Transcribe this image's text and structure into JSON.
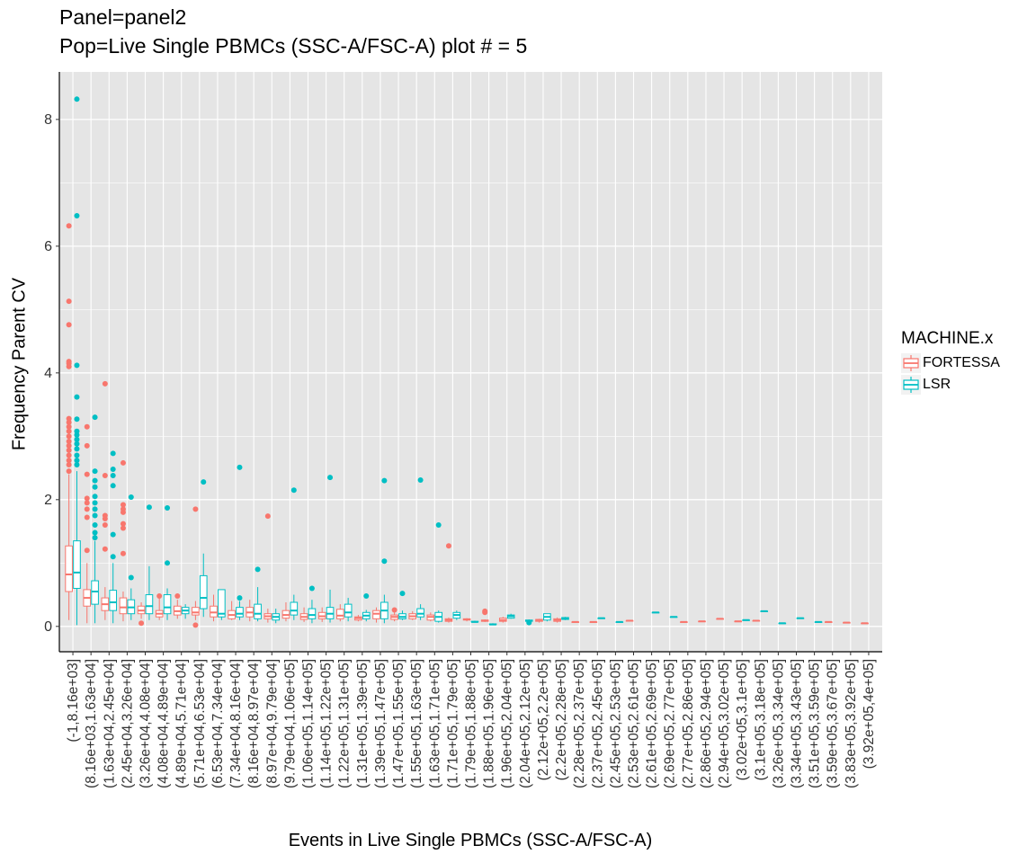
{
  "chart_data": {
    "type": "box",
    "title": "Panel=panel2",
    "subtitle": "Pop=Live Single PBMCs (SSC-A/FSC-A) plot # = 5",
    "xlabel": "Events in Live Single PBMCs (SSC-A/FSC-A)",
    "ylabel": "Frequency Parent CV",
    "ylim": [
      -0.4,
      8.75
    ],
    "yticks": [
      0,
      2,
      4,
      6,
      8
    ],
    "grid": true,
    "legend_position": "right",
    "legend": {
      "title": "MACHINE.x",
      "entries": [
        {
          "label": "FORTESSA",
          "color": "#F8766D"
        },
        {
          "label": "LSR",
          "color": "#00BFC4"
        }
      ]
    },
    "categories": [
      "(-1,8.16e+03]",
      "(8.16e+03,1.63e+04]",
      "(1.63e+04,2.45e+04]",
      "(2.45e+04,3.26e+04]",
      "(3.26e+04,4.08e+04]",
      "(4.08e+04,4.89e+04]",
      "(4.89e+04,5.71e+04]",
      "(5.71e+04,6.53e+04]",
      "(6.53e+04,7.34e+04]",
      "(7.34e+04,8.16e+04]",
      "(8.16e+04,8.97e+04]",
      "(8.97e+04,9.79e+04]",
      "(9.79e+04,1.06e+05]",
      "(1.06e+05,1.14e+05]",
      "(1.14e+05,1.22e+05]",
      "(1.22e+05,1.31e+05]",
      "(1.31e+05,1.39e+05]",
      "(1.39e+05,1.47e+05]",
      "(1.47e+05,1.55e+05]",
      "(1.55e+05,1.63e+05]",
      "(1.63e+05,1.71e+05]",
      "(1.71e+05,1.79e+05]",
      "(1.79e+05,1.88e+05]",
      "(1.88e+05,1.96e+05]",
      "(1.96e+05,2.04e+05]",
      "(2.04e+05,2.12e+05]",
      "(2.12e+05,2.2e+05]",
      "(2.2e+05,2.28e+05]",
      "(2.28e+05,2.37e+05]",
      "(2.37e+05,2.45e+05]",
      "(2.45e+05,2.53e+05]",
      "(2.53e+05,2.61e+05]",
      "(2.61e+05,2.69e+05]",
      "(2.69e+05,2.77e+05]",
      "(2.77e+05,2.86e+05]",
      "(2.86e+05,2.94e+05]",
      "(2.94e+05,3.02e+05]",
      "(3.02e+05,3.1e+05]",
      "(3.1e+05,3.18e+05]",
      "(3.26e+05,3.34e+05]",
      "(3.34e+05,3.43e+05]",
      "(3.51e+05,3.59e+05]",
      "(3.59e+05,3.67e+05]",
      "(3.83e+05,3.92e+05]",
      "(3.92e+05,4e+05]"
    ],
    "series": [
      {
        "name": "FORTESSA",
        "color": "#F8766D",
        "boxes": [
          {
            "cat": 0,
            "lo": 0.1,
            "q1": 0.55,
            "med": 0.82,
            "q3": 1.27,
            "hi": 2.4,
            "out": [
              2.45,
              2.55,
              2.62,
              2.7,
              2.78,
              2.85,
              2.92,
              3.0,
              3.08,
              3.15,
              3.22,
              3.28,
              4.1,
              4.15,
              4.18,
              4.76,
              5.13,
              6.32
            ]
          },
          {
            "cat": 1,
            "lo": 0.05,
            "q1": 0.32,
            "med": 0.45,
            "q3": 0.58,
            "hi": 1.0,
            "out": [
              1.2,
              1.72,
              1.85,
              1.95,
              2.02,
              2.4,
              2.85,
              3.15
            ]
          },
          {
            "cat": 2,
            "lo": 0.1,
            "q1": 0.25,
            "med": 0.35,
            "q3": 0.45,
            "hi": 0.62,
            "out": [
              1.22,
              1.6,
              1.7,
              1.75,
              2.38,
              3.83
            ]
          },
          {
            "cat": 3,
            "lo": 0.08,
            "q1": 0.2,
            "med": 0.3,
            "q3": 0.45,
            "hi": 0.55,
            "out": [
              1.15,
              1.55,
              1.62,
              1.8,
              1.85,
              1.92,
              2.58
            ]
          },
          {
            "cat": 4,
            "lo": 0.12,
            "q1": 0.2,
            "med": 0.25,
            "q3": 0.32,
            "hi": 0.38,
            "out": [
              0.05
            ]
          },
          {
            "cat": 5,
            "lo": 0.1,
            "q1": 0.15,
            "med": 0.2,
            "q3": 0.25,
            "hi": 0.45,
            "out": [
              0.48
            ]
          },
          {
            "cat": 6,
            "lo": 0.12,
            "q1": 0.18,
            "med": 0.24,
            "q3": 0.32,
            "hi": 0.42,
            "out": [
              0.48
            ]
          },
          {
            "cat": 7,
            "lo": 0.1,
            "q1": 0.18,
            "med": 0.22,
            "q3": 0.3,
            "hi": 0.4,
            "out": [
              0.02,
              1.85
            ]
          },
          {
            "cat": 8,
            "lo": 0.08,
            "q1": 0.15,
            "med": 0.22,
            "q3": 0.32,
            "hi": 0.5,
            "out": []
          },
          {
            "cat": 9,
            "lo": 0.1,
            "q1": 0.12,
            "med": 0.18,
            "q3": 0.25,
            "hi": 0.4,
            "out": []
          },
          {
            "cat": 10,
            "lo": 0.08,
            "q1": 0.15,
            "med": 0.22,
            "q3": 0.3,
            "hi": 0.42,
            "out": []
          },
          {
            "cat": 11,
            "lo": 0.06,
            "q1": 0.12,
            "med": 0.16,
            "q3": 0.2,
            "hi": 0.28,
            "out": [
              1.74
            ]
          },
          {
            "cat": 12,
            "lo": 0.08,
            "q1": 0.13,
            "med": 0.18,
            "q3": 0.25,
            "hi": 0.38,
            "out": []
          },
          {
            "cat": 13,
            "lo": 0.07,
            "q1": 0.11,
            "med": 0.15,
            "q3": 0.2,
            "hi": 0.3,
            "out": []
          },
          {
            "cat": 14,
            "lo": 0.07,
            "q1": 0.12,
            "med": 0.16,
            "q3": 0.22,
            "hi": 0.3,
            "out": []
          },
          {
            "cat": 15,
            "lo": 0.08,
            "q1": 0.12,
            "med": 0.17,
            "q3": 0.27,
            "hi": 0.35,
            "out": []
          },
          {
            "cat": 16,
            "lo": 0.08,
            "q1": 0.1,
            "med": 0.13,
            "q3": 0.15,
            "hi": 0.18,
            "out": []
          },
          {
            "cat": 17,
            "lo": 0.06,
            "q1": 0.12,
            "med": 0.2,
            "q3": 0.25,
            "hi": 0.3,
            "out": []
          },
          {
            "cat": 18,
            "lo": 0.08,
            "q1": 0.11,
            "med": 0.15,
            "q3": 0.18,
            "hi": 0.22,
            "out": [
              0.26
            ]
          },
          {
            "cat": 19,
            "lo": 0.1,
            "q1": 0.12,
            "med": 0.16,
            "q3": 0.2,
            "hi": 0.24,
            "out": []
          },
          {
            "cat": 20,
            "lo": 0.08,
            "q1": 0.1,
            "med": 0.15,
            "q3": 0.18,
            "hi": 0.22,
            "out": []
          },
          {
            "cat": 21,
            "lo": 0.06,
            "q1": 0.08,
            "med": 0.1,
            "q3": 0.12,
            "hi": 0.14,
            "out": [
              1.27
            ]
          },
          {
            "cat": 22,
            "lo": 0.08,
            "q1": 0.1,
            "med": 0.11,
            "q3": 0.12,
            "hi": 0.13,
            "out": []
          },
          {
            "cat": 23,
            "lo": 0.07,
            "q1": 0.08,
            "med": 0.09,
            "q3": 0.1,
            "hi": 0.11,
            "out": [
              0.22,
              0.24
            ]
          },
          {
            "cat": 24,
            "lo": 0.06,
            "q1": 0.08,
            "med": 0.1,
            "q3": 0.13,
            "hi": 0.15,
            "out": []
          },
          {
            "cat": 26,
            "lo": 0.06,
            "q1": 0.08,
            "med": 0.1,
            "q3": 0.11,
            "hi": 0.12,
            "out": []
          },
          {
            "cat": 27,
            "lo": 0.06,
            "q1": 0.08,
            "med": 0.1,
            "q3": 0.12,
            "hi": 0.14,
            "out": []
          },
          {
            "cat": 28,
            "lo": 0.07,
            "q1": 0.07,
            "med": 0.07,
            "q3": 0.07,
            "hi": 0.07,
            "out": []
          },
          {
            "cat": 29,
            "lo": 0.07,
            "q1": 0.07,
            "med": 0.07,
            "q3": 0.07,
            "hi": 0.07,
            "out": []
          },
          {
            "cat": 31,
            "lo": 0.09,
            "q1": 0.09,
            "med": 0.09,
            "q3": 0.09,
            "hi": 0.09,
            "out": []
          },
          {
            "cat": 34,
            "lo": 0.07,
            "q1": 0.07,
            "med": 0.07,
            "q3": 0.07,
            "hi": 0.07,
            "out": []
          },
          {
            "cat": 35,
            "lo": 0.08,
            "q1": 0.08,
            "med": 0.08,
            "q3": 0.08,
            "hi": 0.08,
            "out": []
          },
          {
            "cat": 36,
            "lo": 0.12,
            "q1": 0.12,
            "med": 0.12,
            "q3": 0.12,
            "hi": 0.12,
            "out": []
          },
          {
            "cat": 37,
            "lo": 0.08,
            "q1": 0.08,
            "med": 0.08,
            "q3": 0.08,
            "hi": 0.08,
            "out": []
          },
          {
            "cat": 38,
            "lo": 0.09,
            "q1": 0.09,
            "med": 0.09,
            "q3": 0.09,
            "hi": 0.09,
            "out": []
          },
          {
            "cat": 42,
            "lo": 0.07,
            "q1": 0.07,
            "med": 0.07,
            "q3": 0.07,
            "hi": 0.07,
            "out": []
          },
          {
            "cat": 43,
            "lo": 0.06,
            "q1": 0.06,
            "med": 0.06,
            "q3": 0.06,
            "hi": 0.06,
            "out": []
          },
          {
            "cat": 44,
            "lo": 0.05,
            "q1": 0.05,
            "med": 0.05,
            "q3": 0.05,
            "hi": 0.05,
            "out": []
          }
        ]
      },
      {
        "name": "LSR",
        "color": "#00BFC4",
        "boxes": [
          {
            "cat": 0,
            "lo": 0.02,
            "q1": 0.6,
            "med": 0.85,
            "q3": 1.35,
            "hi": 2.45,
            "out": [
              2.55,
              2.62,
              2.7,
              2.8,
              2.88,
              2.95,
              3.02,
              3.08,
              3.27,
              3.62,
              4.12,
              6.48,
              8.32
            ]
          },
          {
            "cat": 1,
            "lo": 0.05,
            "q1": 0.35,
            "med": 0.55,
            "q3": 0.72,
            "hi": 1.35,
            "out": [
              1.4,
              1.48,
              1.6,
              1.75,
              1.85,
              1.95,
              2.05,
              2.2,
              2.3,
              2.45,
              3.3
            ]
          },
          {
            "cat": 2,
            "lo": 0.05,
            "q1": 0.25,
            "med": 0.38,
            "q3": 0.57,
            "hi": 1.0,
            "out": [
              1.1,
              1.45,
              2.22,
              2.38,
              2.48,
              2.73
            ]
          },
          {
            "cat": 3,
            "lo": 0.1,
            "q1": 0.2,
            "med": 0.3,
            "q3": 0.42,
            "hi": 0.6,
            "out": [
              0.77,
              2.04
            ]
          },
          {
            "cat": 4,
            "lo": 0.1,
            "q1": 0.2,
            "med": 0.32,
            "q3": 0.5,
            "hi": 0.95,
            "out": [
              1.88
            ]
          },
          {
            "cat": 5,
            "lo": 0.1,
            "q1": 0.2,
            "med": 0.3,
            "q3": 0.5,
            "hi": 0.6,
            "out": [
              1.0,
              1.87
            ]
          },
          {
            "cat": 6,
            "lo": 0.12,
            "q1": 0.2,
            "med": 0.25,
            "q3": 0.3,
            "hi": 0.35,
            "out": []
          },
          {
            "cat": 7,
            "lo": 0.15,
            "q1": 0.28,
            "med": 0.45,
            "q3": 0.8,
            "hi": 1.15,
            "out": [
              2.28
            ]
          },
          {
            "cat": 8,
            "lo": 0.1,
            "q1": 0.15,
            "med": 0.2,
            "q3": 0.58,
            "hi": 0.58,
            "out": []
          },
          {
            "cat": 9,
            "lo": 0.1,
            "q1": 0.15,
            "med": 0.2,
            "q3": 0.3,
            "hi": 0.4,
            "out": [
              0.45,
              2.51
            ]
          },
          {
            "cat": 10,
            "lo": 0.08,
            "q1": 0.12,
            "med": 0.2,
            "q3": 0.35,
            "hi": 0.62,
            "out": [
              0.9
            ]
          },
          {
            "cat": 11,
            "lo": 0.05,
            "q1": 0.1,
            "med": 0.15,
            "q3": 0.2,
            "hi": 0.28,
            "out": []
          },
          {
            "cat": 12,
            "lo": 0.1,
            "q1": 0.18,
            "med": 0.25,
            "q3": 0.38,
            "hi": 0.5,
            "out": [
              2.15
            ]
          },
          {
            "cat": 13,
            "lo": 0.05,
            "q1": 0.12,
            "med": 0.18,
            "q3": 0.28,
            "hi": 0.42,
            "out": [
              0.6
            ]
          },
          {
            "cat": 14,
            "lo": 0.06,
            "q1": 0.12,
            "med": 0.2,
            "q3": 0.3,
            "hi": 0.58,
            "out": [
              2.35
            ]
          },
          {
            "cat": 15,
            "lo": 0.08,
            "q1": 0.15,
            "med": 0.22,
            "q3": 0.35,
            "hi": 0.45,
            "out": []
          },
          {
            "cat": 16,
            "lo": 0.08,
            "q1": 0.12,
            "med": 0.17,
            "q3": 0.22,
            "hi": 0.26,
            "out": [
              0.48
            ]
          },
          {
            "cat": 17,
            "lo": 0.05,
            "q1": 0.12,
            "med": 0.25,
            "q3": 0.38,
            "hi": 0.5,
            "out": [
              1.03,
              2.3
            ]
          },
          {
            "cat": 18,
            "lo": 0.1,
            "q1": 0.12,
            "med": 0.15,
            "q3": 0.2,
            "hi": 0.25,
            "out": [
              0.52
            ]
          },
          {
            "cat": 19,
            "lo": 0.1,
            "q1": 0.15,
            "med": 0.2,
            "q3": 0.28,
            "hi": 0.35,
            "out": [
              2.31
            ]
          },
          {
            "cat": 20,
            "lo": 0.06,
            "q1": 0.08,
            "med": 0.15,
            "q3": 0.22,
            "hi": 0.25,
            "out": [
              1.6
            ]
          },
          {
            "cat": 21,
            "lo": 0.1,
            "q1": 0.13,
            "med": 0.18,
            "q3": 0.22,
            "hi": 0.25,
            "out": []
          },
          {
            "cat": 22,
            "lo": 0.06,
            "q1": 0.07,
            "med": 0.07,
            "q3": 0.08,
            "hi": 0.09,
            "out": []
          },
          {
            "cat": 23,
            "lo": 0.02,
            "q1": 0.03,
            "med": 0.03,
            "q3": 0.04,
            "hi": 0.05,
            "out": []
          },
          {
            "cat": 24,
            "lo": 0.12,
            "q1": 0.13,
            "med": 0.16,
            "q3": 0.18,
            "hi": 0.2,
            "out": []
          },
          {
            "cat": 25,
            "lo": 0.07,
            "q1": 0.08,
            "med": 0.09,
            "q3": 0.1,
            "hi": 0.11,
            "out": [
              0.06
            ]
          },
          {
            "cat": 26,
            "lo": 0.08,
            "q1": 0.1,
            "med": 0.15,
            "q3": 0.2,
            "hi": 0.2,
            "out": []
          },
          {
            "cat": 27,
            "lo": 0.1,
            "q1": 0.11,
            "med": 0.12,
            "q3": 0.14,
            "hi": 0.15,
            "out": []
          },
          {
            "cat": 29,
            "lo": 0.13,
            "q1": 0.13,
            "med": 0.13,
            "q3": 0.13,
            "hi": 0.13,
            "out": []
          },
          {
            "cat": 30,
            "lo": 0.07,
            "q1": 0.07,
            "med": 0.07,
            "q3": 0.07,
            "hi": 0.07,
            "out": []
          },
          {
            "cat": 32,
            "lo": 0.22,
            "q1": 0.22,
            "med": 0.22,
            "q3": 0.22,
            "hi": 0.22,
            "out": []
          },
          {
            "cat": 33,
            "lo": 0.15,
            "q1": 0.15,
            "med": 0.15,
            "q3": 0.15,
            "hi": 0.15,
            "out": []
          },
          {
            "cat": 37,
            "lo": 0.1,
            "q1": 0.1,
            "med": 0.1,
            "q3": 0.1,
            "hi": 0.1,
            "out": []
          },
          {
            "cat": 38,
            "lo": 0.24,
            "q1": 0.24,
            "med": 0.24,
            "q3": 0.24,
            "hi": 0.24,
            "out": []
          },
          {
            "cat": 39,
            "lo": 0.05,
            "q1": 0.05,
            "med": 0.05,
            "q3": 0.05,
            "hi": 0.05,
            "out": []
          },
          {
            "cat": 40,
            "lo": 0.13,
            "q1": 0.13,
            "med": 0.13,
            "q3": 0.13,
            "hi": 0.13,
            "out": []
          },
          {
            "cat": 41,
            "lo": 0.07,
            "q1": 0.07,
            "med": 0.07,
            "q3": 0.07,
            "hi": 0.07,
            "out": []
          }
        ]
      }
    ]
  }
}
